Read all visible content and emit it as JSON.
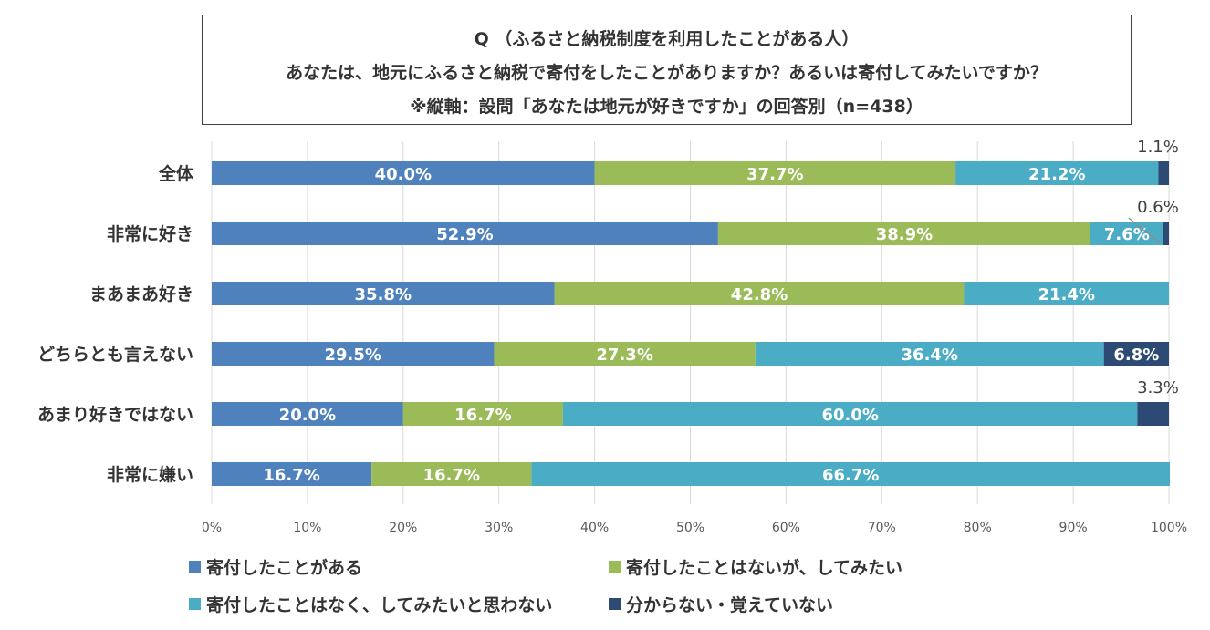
{
  "title": {
    "line1": "Q （ふるさと納税制度を利用したことがある人）",
    "line2": "あなたは、地元にふるさと納税で寄付をしたことがありますか？あるいは寄付してみたいですか？",
    "line3": "※縦軸：設問「あなたは地元が好きですか」の回答別（n=438）"
  },
  "chart_data": {
    "type": "bar",
    "orientation": "horizontal",
    "stacked": true,
    "categories": [
      "全体",
      "非常に好き",
      "まあまあ好き",
      "どちらとも言えない",
      "あまり好きではない",
      "非常に嫌い"
    ],
    "series": [
      {
        "name": "寄付したことがある",
        "color": "#4f81bd",
        "values": [
          40.0,
          52.9,
          35.8,
          29.5,
          20.0,
          16.7
        ]
      },
      {
        "name": "寄付したことはないが、してみたい",
        "color": "#9bbb59",
        "values": [
          37.7,
          38.9,
          42.8,
          27.3,
          16.7,
          16.7
        ]
      },
      {
        "name": "寄付したことはなく、してみたいと思わない",
        "color": "#4bacc6",
        "values": [
          21.2,
          7.6,
          21.4,
          36.4,
          60.0,
          66.7
        ]
      },
      {
        "name": "分からない・覚えていない",
        "color": "#2c4a73",
        "values": [
          1.1,
          0.6,
          0.0,
          6.8,
          3.3,
          0.0
        ]
      }
    ],
    "value_labels": [
      [
        "40.0%",
        "37.7%",
        "21.2%",
        "1.1%"
      ],
      [
        "52.9%",
        "38.9%",
        "7.6%",
        "0.6%"
      ],
      [
        "35.8%",
        "42.8%",
        "21.4%",
        ""
      ],
      [
        "29.5%",
        "27.3%",
        "36.4%",
        "6.8%"
      ],
      [
        "20.0%",
        "16.7%",
        "60.0%",
        "3.3%"
      ],
      [
        "16.7%",
        "16.7%",
        "66.7%",
        ""
      ]
    ],
    "x_ticks": [
      "0%",
      "10%",
      "20%",
      "30%",
      "40%",
      "50%",
      "60%",
      "70%",
      "80%",
      "90%",
      "100%"
    ],
    "xlim": [
      0,
      100
    ],
    "grid": true,
    "legend_position": "bottom"
  }
}
